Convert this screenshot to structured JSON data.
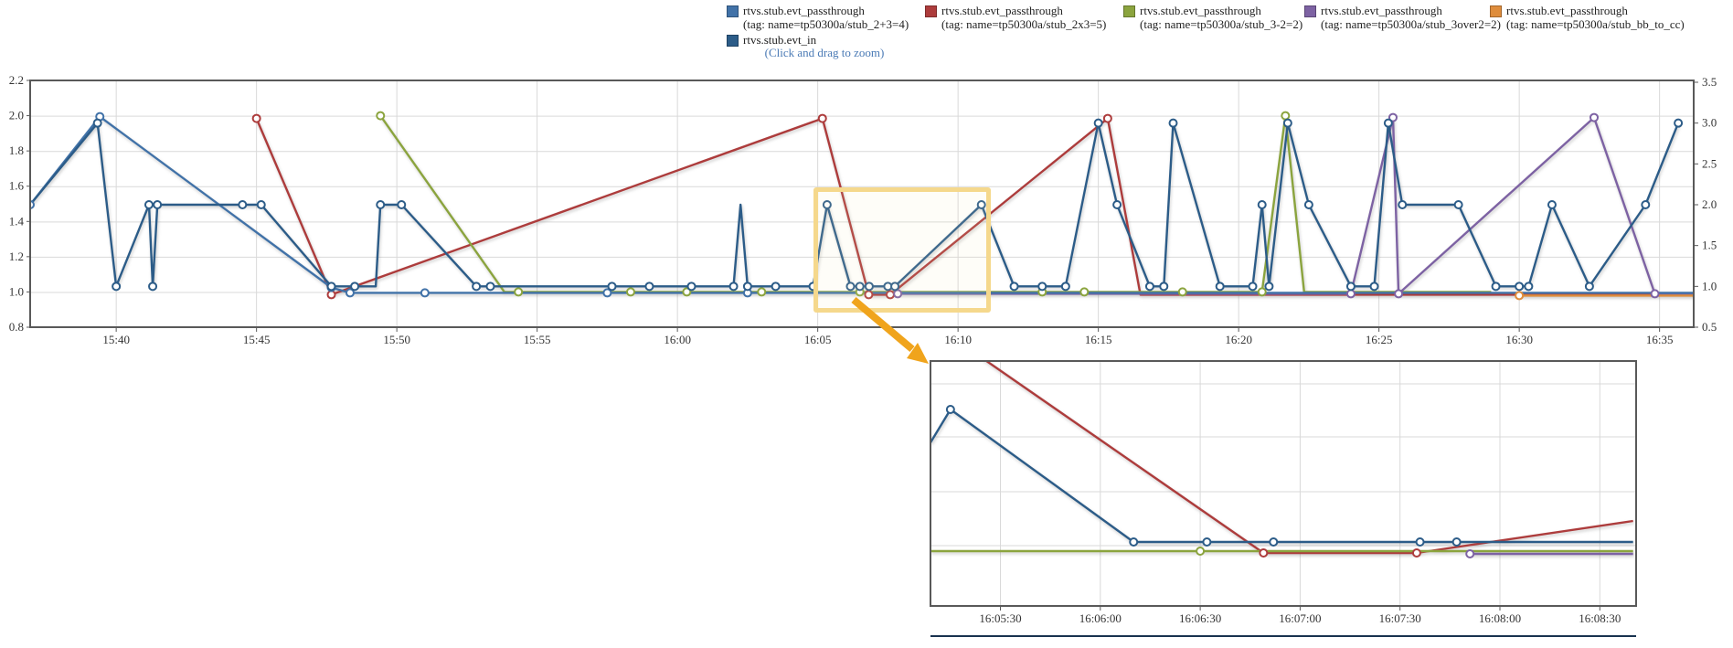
{
  "legend": {
    "hint": "(Click and drag to zoom)",
    "rows": [
      [
        {
          "name": "rtvs.stub.evt_passthrough",
          "tag": "(tag: name=tp50300a/stub_2+3=4)",
          "color": "#4172a8"
        },
        {
          "name": "rtvs.stub.evt_passthrough",
          "tag": "(tag: name=tp50300a/stub_2x3=5)",
          "color": "#ad3c3c"
        },
        {
          "name": "rtvs.stub.evt_passthrough",
          "tag": "(tag: name=tp50300a/stub_3-2=2)",
          "color": "#8ba43e"
        },
        {
          "name": "rtvs.stub.evt_passthrough",
          "tag": "(tag: name=tp50300a/stub_3over2=2)",
          "color": "#7d62a3"
        },
        {
          "name": "rtvs.stub.evt_passthrough",
          "tag": "(tag: name=tp50300a/stub_bb_to_cc)",
          "color": "#df8d3c"
        }
      ],
      [
        {
          "name": "rtvs.stub.evt_in",
          "tag": "",
          "color": "#2c5c88"
        }
      ]
    ]
  },
  "chart_data": [
    {
      "id": "main",
      "type": "line",
      "title": "",
      "xlabel": "",
      "ylabel": "",
      "x_ticks": [
        "15:40",
        "15:45",
        "15:50",
        "15:55",
        "16:00",
        "16:05",
        "16:10",
        "16:15",
        "16:20",
        "16:25",
        "16:30",
        "16:35"
      ],
      "y_left": {
        "ticks": [
          "2.2",
          "2.0",
          "1.8",
          "1.6",
          "1.4",
          "1.2",
          "1.0",
          "0.8"
        ],
        "range": [
          0.8,
          2.2
        ]
      },
      "y_right": {
        "ticks": [
          "3.5",
          "3.0",
          "2.5",
          "2.0",
          "1.5",
          "1.0",
          "0.5"
        ],
        "range": [
          0.5,
          3.5
        ]
      },
      "series": [
        {
          "name": "rtvs.stub.evt_passthrough",
          "tag": "name=tp50300a/stub_2x3=5",
          "color": "#ad3c3c",
          "axis": "left",
          "dy": 3,
          "points": [
            [
              "15:45:00",
              2.0,
              1
            ],
            [
              "15:47:40",
              1.0,
              1
            ],
            [
              "16:05:10",
              2.0,
              1
            ],
            [
              "16:06:49",
              1.0,
              1
            ],
            [
              "16:07:35",
              1.0,
              1
            ],
            [
              "16:15:20",
              2.0,
              1
            ],
            [
              "16:16:30",
              1.0,
              0
            ],
            [
              "16:36:20",
              1.0,
              0
            ]
          ]
        },
        {
          "name": "rtvs.stub.evt_passthrough",
          "tag": "name=tp50300a/stub_3-2=2",
          "color": "#8ba43e",
          "axis": "left",
          "dy": 0,
          "points": [
            [
              "15:49:25",
              2.0,
              1
            ],
            [
              "15:53:50",
              1.0,
              0
            ],
            [
              "15:54:20",
              1.0,
              1
            ],
            [
              "15:58:20",
              1.0,
              1
            ],
            [
              "16:00:20",
              1.0,
              1
            ],
            [
              "16:03:00",
              1.0,
              1
            ],
            [
              "16:06:30",
              1.0,
              1
            ],
            [
              "16:13:00",
              1.0,
              1
            ],
            [
              "16:14:30",
              1.0,
              1
            ],
            [
              "16:18:00",
              1.0,
              1
            ],
            [
              "16:20:50",
              1.0,
              1
            ],
            [
              "16:21:40",
              2.0,
              1
            ],
            [
              "16:22:20",
              1.0,
              0
            ],
            [
              "16:29:00",
              1.0,
              0
            ]
          ]
        },
        {
          "name": "rtvs.stub.evt_passthrough",
          "tag": "name=tp50300a/stub_3over2=2",
          "color": "#7d62a3",
          "axis": "left",
          "dy": 2,
          "points": [
            [
              "16:07:51",
              1.0,
              1
            ],
            [
              "16:24:00",
              1.0,
              1
            ],
            [
              "16:25:30",
              2.0,
              1
            ],
            [
              "16:25:42",
              1.0,
              1
            ],
            [
              "16:32:40",
              2.0,
              1
            ],
            [
              "16:34:50",
              1.0,
              1
            ],
            [
              "16:36:20",
              1.0,
              0
            ]
          ]
        },
        {
          "name": "rtvs.stub.evt_passthrough",
          "tag": "name=tp50300a/stub_bb_to_cc",
          "color": "#df8d3c",
          "axis": "left",
          "dy": 4,
          "points": [
            [
              "16:30:00",
              1.0,
              1
            ],
            [
              "16:36:20",
              1.0,
              1
            ]
          ]
        },
        {
          "name": "rtvs.stub.evt_passthrough",
          "tag": "name=tp50300a/stub_2+3=4",
          "color": "#4172a8",
          "axis": "left",
          "dy": 1,
          "points": [
            [
              "15:36:56",
              1.5,
              1
            ],
            [
              "15:39:25",
              2.0,
              1
            ],
            [
              "15:47:40",
              1.03,
              1
            ],
            [
              "15:48:20",
              1.0,
              1
            ],
            [
              "15:51:00",
              1.0,
              1
            ],
            [
              "15:54:20",
              1.0,
              0
            ],
            [
              "15:57:30",
              1.0,
              1
            ],
            [
              "16:00:30",
              1.0,
              0
            ],
            [
              "16:02:30",
              1.0,
              1
            ],
            [
              "16:36:20",
              1.0,
              0
            ]
          ]
        },
        {
          "name": "rtvs.stub.evt_in",
          "tag": "",
          "color": "#2c5c88",
          "axis": "right",
          "dy": 0,
          "points": [
            [
              "15:36:56",
              2.0,
              0
            ],
            [
              "15:39:20",
              3.0,
              1
            ],
            [
              "15:40:00",
              1.0,
              1
            ],
            [
              "15:41:10",
              2.0,
              1
            ],
            [
              "15:41:18",
              1.0,
              1
            ],
            [
              "15:41:28",
              2.0,
              1
            ],
            [
              "15:44:30",
              2.0,
              1
            ],
            [
              "15:45:10",
              2.0,
              1
            ],
            [
              "15:47:40",
              1.0,
              1
            ],
            [
              "15:48:30",
              1.0,
              1
            ],
            [
              "15:49:15",
              1.0,
              0
            ],
            [
              "15:49:25",
              2.0,
              1
            ],
            [
              "15:50:10",
              2.0,
              1
            ],
            [
              "15:52:50",
              1.0,
              1
            ],
            [
              "15:53:20",
              1.0,
              1
            ],
            [
              "15:57:40",
              1.0,
              1
            ],
            [
              "15:59:00",
              1.0,
              1
            ],
            [
              "16:00:30",
              1.0,
              1
            ],
            [
              "16:02:00",
              1.0,
              1
            ],
            [
              "16:02:15",
              2.0,
              0
            ],
            [
              "16:02:30",
              1.0,
              1
            ],
            [
              "16:03:30",
              1.0,
              1
            ],
            [
              "16:04:50",
              1.0,
              1
            ],
            [
              "16:05:20",
              2.0,
              1
            ],
            [
              "16:06:10",
              1.0,
              1
            ],
            [
              "16:06:30",
              1.0,
              1
            ],
            [
              "16:06:50",
              1.0,
              1
            ],
            [
              "16:07:30",
              1.0,
              1
            ],
            [
              "16:07:45",
              1.0,
              1
            ],
            [
              "16:10:50",
              2.0,
              1
            ],
            [
              "16:12:00",
              1.0,
              1
            ],
            [
              "16:13:00",
              1.0,
              1
            ],
            [
              "16:13:50",
              1.0,
              1
            ],
            [
              "16:15:00",
              3.0,
              1
            ],
            [
              "16:15:40",
              2.0,
              1
            ],
            [
              "16:16:50",
              1.0,
              1
            ],
            [
              "16:17:20",
              1.0,
              1
            ],
            [
              "16:17:40",
              3.0,
              1
            ],
            [
              "16:19:20",
              1.0,
              1
            ],
            [
              "16:20:30",
              1.0,
              1
            ],
            [
              "16:20:50",
              2.0,
              1
            ],
            [
              "16:21:05",
              1.0,
              1
            ],
            [
              "16:21:45",
              3.0,
              1
            ],
            [
              "16:22:30",
              2.0,
              1
            ],
            [
              "16:24:00",
              1.0,
              1
            ],
            [
              "16:24:50",
              1.0,
              1
            ],
            [
              "16:25:20",
              3.0,
              1
            ],
            [
              "16:25:50",
              2.0,
              1
            ],
            [
              "16:27:50",
              2.0,
              1
            ],
            [
              "16:29:10",
              1.0,
              1
            ],
            [
              "16:30:00",
              1.0,
              1
            ],
            [
              "16:30:20",
              1.0,
              1
            ],
            [
              "16:31:10",
              2.0,
              1
            ],
            [
              "16:32:30",
              1.0,
              1
            ],
            [
              "16:34:30",
              2.0,
              1
            ],
            [
              "16:35:40",
              3.0,
              1
            ]
          ]
        }
      ]
    },
    {
      "id": "zoom",
      "type": "line",
      "title": "",
      "x_ticks": [
        "16:05:30",
        "16:06:00",
        "16:06:30",
        "16:07:00",
        "16:07:30",
        "16:08:00",
        "16:08:30"
      ],
      "series": [
        {
          "name": "rtvs.stub.evt_passthrough",
          "tag": "name=tp50300a/stub_2x3=5",
          "color": "#ad3c3c",
          "axis": "left",
          "dy": 2,
          "points": [
            [
              "16:05:10",
              2.0,
              0
            ],
            [
              "16:06:49",
              1.0,
              1
            ],
            [
              "16:07:35",
              1.0,
              1
            ],
            [
              "16:08:40",
              1.14,
              0
            ]
          ]
        },
        {
          "name": "rtvs.stub.evt_passthrough",
          "tag": "name=tp50300a/stub_3-2=2",
          "color": "#8ba43e",
          "axis": "left",
          "dy": 0,
          "points": [
            [
              "16:05:09",
              1.0,
              0
            ],
            [
              "16:06:30",
              1.0,
              1
            ],
            [
              "16:08:40",
              1.0,
              0
            ]
          ]
        },
        {
          "name": "rtvs.stub.evt_passthrough",
          "tag": "name=tp50300a/stub_3over2=2",
          "color": "#7d62a3",
          "axis": "left",
          "dy": 3,
          "points": [
            [
              "16:07:51",
              1.0,
              1
            ],
            [
              "16:08:40",
              1.0,
              0
            ]
          ]
        },
        {
          "name": "rtvs.stub.evt_in",
          "tag": "",
          "color": "#2c5c88",
          "axis": "right",
          "dy": 0,
          "points": [
            [
              "16:05:09",
              1.75,
              0
            ],
            [
              "16:05:15",
              2.0,
              1
            ],
            [
              "16:06:10",
              1.0,
              1
            ],
            [
              "16:06:32",
              1.0,
              1
            ],
            [
              "16:06:52",
              1.0,
              1
            ],
            [
              "16:07:36",
              1.0,
              1
            ],
            [
              "16:07:47",
              1.0,
              1
            ],
            [
              "16:08:40",
              1.0,
              0
            ]
          ]
        }
      ]
    }
  ]
}
